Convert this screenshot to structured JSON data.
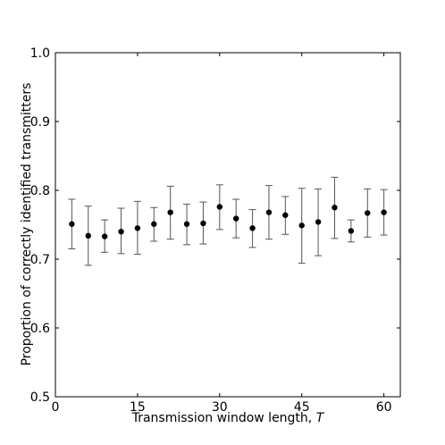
{
  "chart_data": {
    "type": "scatter",
    "title": "",
    "xlabel": "Transmission window length, ",
    "xlabel_var": "T",
    "ylabel": "Proportion of correctly identified transmitters",
    "xlim": [
      0,
      63
    ],
    "ylim": [
      0.5,
      1.0
    ],
    "xticks": [
      0,
      15,
      30,
      45,
      60
    ],
    "yticks": [
      0.5,
      0.6,
      0.7,
      0.8,
      0.9,
      1.0
    ],
    "xtick_labels": [
      "0",
      "15",
      "30",
      "45",
      "60"
    ],
    "ytick_labels": [
      "0.5",
      "0.6",
      "0.7",
      "0.8",
      "0.9",
      "1.0"
    ],
    "grid": false,
    "legend": "none",
    "marker_color": "#000000",
    "errorbar_color": "#555555",
    "points": [
      {
        "x": 3,
        "y": 0.751,
        "lo": 0.715,
        "hi": 0.787
      },
      {
        "x": 6,
        "y": 0.734,
        "lo": 0.691,
        "hi": 0.777
      },
      {
        "x": 9,
        "y": 0.733,
        "lo": 0.71,
        "hi": 0.757
      },
      {
        "x": 12,
        "y": 0.74,
        "lo": 0.708,
        "hi": 0.774
      },
      {
        "x": 15,
        "y": 0.745,
        "lo": 0.707,
        "hi": 0.784
      },
      {
        "x": 18,
        "y": 0.751,
        "lo": 0.726,
        "hi": 0.775
      },
      {
        "x": 21,
        "y": 0.768,
        "lo": 0.729,
        "hi": 0.806
      },
      {
        "x": 24,
        "y": 0.751,
        "lo": 0.721,
        "hi": 0.78
      },
      {
        "x": 27,
        "y": 0.752,
        "lo": 0.722,
        "hi": 0.783
      },
      {
        "x": 30,
        "y": 0.776,
        "lo": 0.743,
        "hi": 0.808
      },
      {
        "x": 33,
        "y": 0.759,
        "lo": 0.731,
        "hi": 0.787
      },
      {
        "x": 36,
        "y": 0.745,
        "lo": 0.717,
        "hi": 0.772
      },
      {
        "x": 39,
        "y": 0.768,
        "lo": 0.729,
        "hi": 0.807
      },
      {
        "x": 42,
        "y": 0.764,
        "lo": 0.736,
        "hi": 0.791
      },
      {
        "x": 45,
        "y": 0.749,
        "lo": 0.694,
        "hi": 0.803
      },
      {
        "x": 48,
        "y": 0.754,
        "lo": 0.705,
        "hi": 0.802
      },
      {
        "x": 51,
        "y": 0.775,
        "lo": 0.73,
        "hi": 0.819
      },
      {
        "x": 54,
        "y": 0.741,
        "lo": 0.725,
        "hi": 0.757
      },
      {
        "x": 57,
        "y": 0.767,
        "lo": 0.732,
        "hi": 0.802
      },
      {
        "x": 60,
        "y": 0.768,
        "lo": 0.735,
        "hi": 0.801
      }
    ]
  }
}
